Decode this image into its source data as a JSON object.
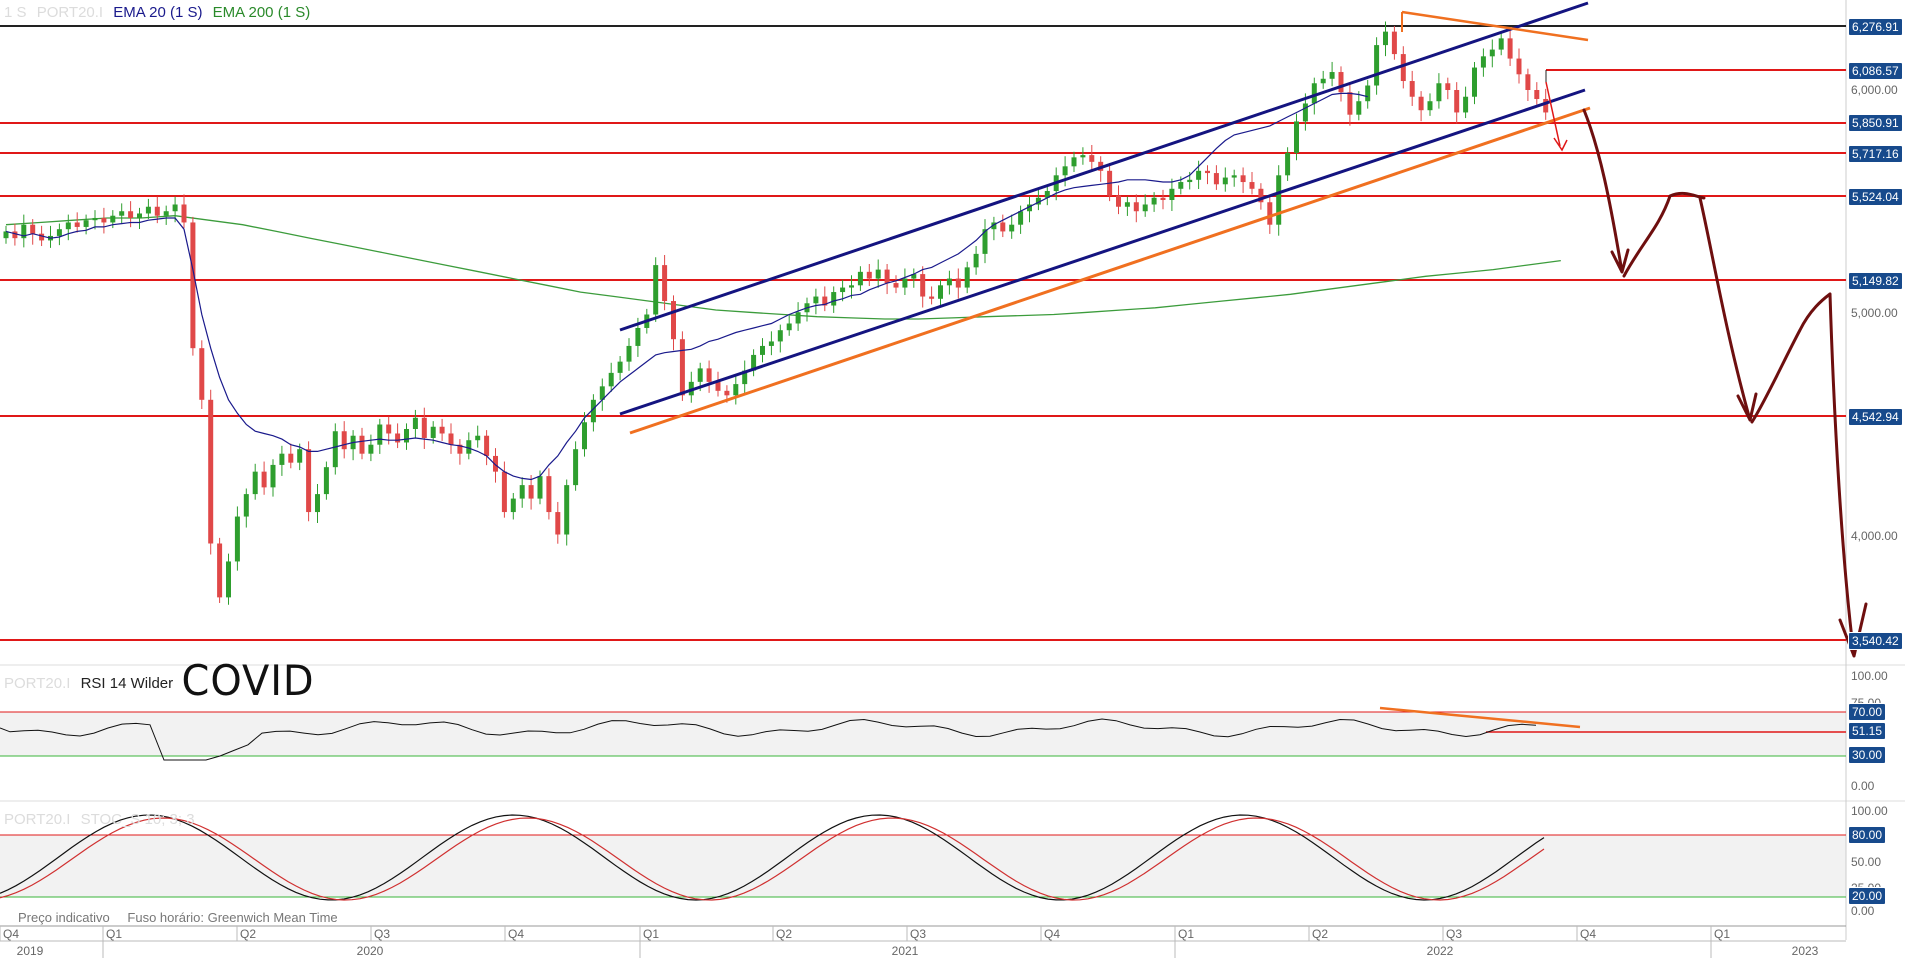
{
  "legend_main": {
    "interval": "1 S",
    "symbol": "PORT20.I",
    "ema20": "EMA 20  (1 S)",
    "ema200": "EMA 200  (1 S)"
  },
  "legend_rsi": {
    "symbol": "PORT20.I",
    "name": "RSI 14 Wilder"
  },
  "legend_stoch": {
    "symbol": "PORT20.I",
    "name": "STOC_S 10; 3; 3"
  },
  "annotation": "COVID",
  "footer": {
    "indicative": "Preço indicativo",
    "timezone": "Fuso horário: Greenwich Mean Time"
  },
  "colors": {
    "up": "#2e9e2e",
    "down": "#e04848",
    "ema20": "#1a1a8c",
    "ema200": "#3c9c3c",
    "level": "#e01818",
    "channel": "#141480",
    "trend": "#f07020",
    "arrow": "#6e0f0f",
    "badge": "#174a8c"
  },
  "chart_data": [
    {
      "type": "candlestick",
      "ylim": [
        3640,
        6300
      ],
      "price_ticks": [
        "6,000.00",
        "5,000.00",
        "4,000.00"
      ],
      "level_badges": [
        "6,276.91",
        "6,086.57",
        "5,850.91",
        "5,717.16",
        "5,524.04",
        "5,149.82",
        "4,542.94",
        "3,540.42"
      ],
      "x_ticks": [
        "Q4",
        "Q1",
        "Q2",
        "Q3",
        "Q4",
        "Q1",
        "Q2",
        "Q3",
        "Q4",
        "Q1",
        "Q2",
        "Q3",
        "Q4",
        "Q1"
      ],
      "year_labels": [
        "2019",
        "2020",
        "2021",
        "2022",
        "2023"
      ],
      "closes": [
        5370,
        5340,
        5400,
        5360,
        5330,
        5350,
        5380,
        5410,
        5390,
        5420,
        5430,
        5410,
        5440,
        5460,
        5430,
        5450,
        5480,
        5440,
        5460,
        5490,
        5410,
        4850,
        4620,
        3980,
        3740,
        3900,
        4100,
        4200,
        4300,
        4230,
        4330,
        4380,
        4340,
        4400,
        4120,
        4200,
        4320,
        4480,
        4400,
        4460,
        4380,
        4420,
        4510,
        4470,
        4430,
        4490,
        4540,
        4450,
        4500,
        4470,
        4420,
        4380,
        4440,
        4460,
        4370,
        4300,
        4120,
        4180,
        4240,
        4180,
        4280,
        4120,
        4020,
        4240,
        4400,
        4520,
        4620,
        4680,
        4740,
        4790,
        4860,
        4940,
        5000,
        5220,
        5060,
        4890,
        4640,
        4700,
        4760,
        4700,
        4660,
        4640,
        4690,
        4750,
        4820,
        4860,
        4880,
        4930,
        4960,
        5010,
        5050,
        5080,
        5040,
        5100,
        5120,
        5130,
        5190,
        5160,
        5200,
        5140,
        5120,
        5160,
        5180,
        5080,
        5070,
        5130,
        5160,
        5120,
        5210,
        5270,
        5380,
        5410,
        5370,
        5400,
        5460,
        5490,
        5520,
        5550,
        5620,
        5660,
        5700,
        5710,
        5680,
        5640,
        5530,
        5480,
        5500,
        5460,
        5490,
        5520,
        5510,
        5560,
        5590,
        5600,
        5640,
        5630,
        5580,
        5610,
        5620,
        5590,
        5560,
        5500,
        5400,
        5620,
        5720,
        5860,
        5940,
        6030,
        6050,
        6080,
        5990,
        5890,
        5950,
        6020,
        6200,
        6260,
        6160,
        6040,
        5970,
        5910,
        5950,
        6030,
        6000,
        5900,
        5970,
        6100,
        6150,
        6180,
        6230,
        6140,
        6070,
        6000,
        5960,
        5900
      ],
      "ema20": [
        5370,
        5360,
        5350,
        5360,
        5350,
        5340,
        5345,
        5360,
        5370,
        5375,
        5390,
        5390,
        5400,
        5405,
        5410,
        5410,
        5420,
        5425,
        5430,
        5430,
        5380,
        5200,
        5000,
        4850,
        4720,
        4620,
        4560,
        4510,
        4480,
        4470,
        4460,
        4445,
        4420,
        4410,
        4390,
        4390,
        4400,
        4410,
        4420,
        4430,
        4435,
        4440,
        4445,
        4440,
        4440,
        4445,
        4450,
        4445,
        4440,
        4430,
        4420,
        4415,
        4405,
        4390,
        4370,
        4330,
        4300,
        4280,
        4270,
        4265,
        4280,
        4330,
        4370,
        4430,
        4480,
        4540,
        4580,
        4620,
        4660,
        4700,
        4730,
        4760,
        4790,
        4820,
        4830,
        4835,
        4840,
        4845,
        4860,
        4880,
        4890,
        4905,
        4920,
        4930,
        4940,
        4950,
        4960,
        4980,
        5000,
        5015,
        5030,
        5040,
        5045,
        5060,
        5070,
        5085,
        5090,
        5110,
        5125,
        5140,
        5150,
        5165,
        5180,
        5200,
        5210,
        5230,
        5250,
        5270,
        5300,
        5330,
        5370,
        5400,
        5420,
        5440,
        5460,
        5480,
        5500,
        5520,
        5540,
        5555,
        5565,
        5570,
        5575,
        5580,
        5585,
        5590,
        5600,
        5600,
        5600,
        5595,
        5590,
        5590,
        5600,
        5620,
        5660,
        5700,
        5740,
        5775,
        5800,
        5810,
        5820,
        5830,
        5840,
        5860,
        5880,
        5900,
        5920,
        5940,
        5960,
        5980,
        5985,
        5985,
        5980,
        5970
      ],
      "ema200": [
        5400,
        5410,
        5420,
        5430,
        5430,
        5440,
        5420,
        5400,
        5370,
        5340,
        5310,
        5280,
        5250,
        5220,
        5190,
        5160,
        5130,
        5100,
        5080,
        5060,
        5040,
        5020,
        5010,
        5000,
        4990,
        4985,
        4980,
        4980,
        4985,
        4990,
        4995,
        5000,
        5010,
        5020,
        5030,
        5045,
        5060,
        5075,
        5090,
        5110,
        5130,
        5150,
        5170,
        5185,
        5200,
        5220,
        5240
      ],
      "rsi": {
        "levels": [
          "70.00",
          "30.00"
        ],
        "badge": "51.15",
        "ticks": [
          "100.00",
          "75.00",
          "50.00",
          "25.00",
          "0.00"
        ]
      },
      "stochastic": {
        "levels": [
          "80.00",
          "20.00"
        ],
        "ticks": [
          "100.00",
          "50.00",
          "25.00",
          "0.00"
        ]
      }
    }
  ]
}
